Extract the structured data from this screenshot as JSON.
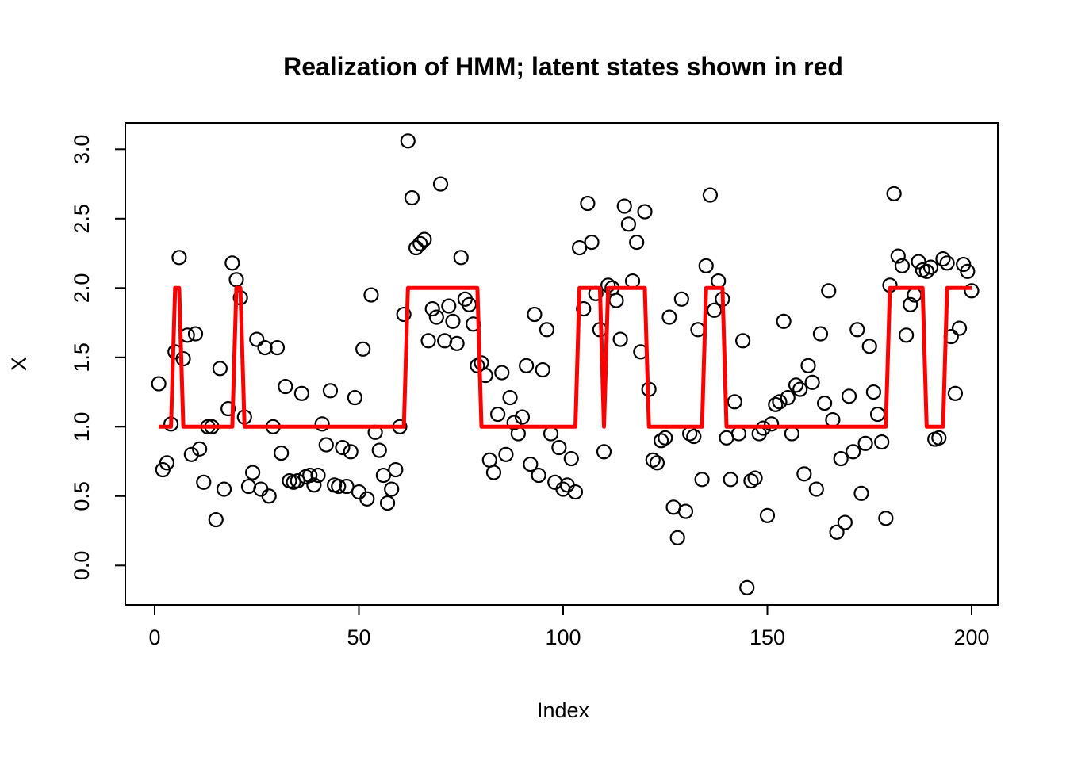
{
  "title": "Realization of HMM; latent states shown in red",
  "colors": {
    "latent_line": "#FF0000",
    "point_stroke": "#000000",
    "axis": "#000000",
    "background": "#FFFFFF"
  },
  "chart_data": {
    "type": "scatter",
    "title": "Realization of HMM; latent states shown in red",
    "xlabel": "Index",
    "ylabel": "X",
    "x_description": "Index runs 1..200; one observation per index",
    "x_ticks": [
      0,
      50,
      100,
      150,
      200
    ],
    "y_ticks": [
      "0.0",
      "0.5",
      "1.0",
      "1.5",
      "2.0",
      "2.5",
      "3.0"
    ],
    "y_tick_values": [
      0,
      0.5,
      1,
      1.5,
      2,
      2.5,
      3
    ],
    "xlim": [
      -7,
      207
    ],
    "ylim": [
      -0.33,
      3.19
    ],
    "grid": false,
    "legend": "none (red step line = latent state, open circles = observations)",
    "latent_default_state": 1,
    "latent_state2_runs": [
      [
        5,
        6
      ],
      [
        20,
        21
      ],
      [
        62,
        79
      ],
      [
        104,
        109
      ],
      [
        111,
        120
      ],
      [
        135,
        139
      ],
      [
        180,
        188
      ],
      [
        194,
        200
      ]
    ],
    "observations": [
      1.31,
      0.69,
      0.74,
      1.02,
      1.54,
      2.22,
      1.49,
      1.66,
      0.8,
      1.67,
      0.84,
      0.6,
      1.0,
      1.0,
      0.33,
      1.42,
      0.55,
      1.13,
      2.18,
      2.06,
      1.93,
      1.07,
      0.57,
      0.67,
      1.63,
      0.55,
      1.57,
      0.5,
      1.0,
      1.57,
      0.81,
      1.29,
      0.61,
      0.6,
      0.61,
      1.24,
      0.64,
      0.65,
      0.58,
      0.65,
      1.02,
      0.87,
      1.26,
      0.58,
      0.57,
      0.85,
      0.57,
      0.82,
      1.21,
      0.53,
      1.56,
      0.48,
      1.95,
      0.96,
      0.83,
      0.65,
      0.45,
      0.55,
      0.69,
      1.0,
      1.81,
      3.06,
      2.65,
      2.29,
      2.32,
      2.35,
      1.62,
      1.85,
      1.79,
      2.75,
      1.62,
      1.87,
      1.76,
      1.6,
      2.22,
      1.92,
      1.88,
      1.74,
      1.44,
      1.46,
      1.37,
      0.76,
      0.67,
      1.09,
      1.39,
      0.8,
      1.21,
      1.03,
      0.95,
      1.07,
      1.44,
      0.73,
      1.81,
      0.65,
      1.41,
      1.7,
      0.95,
      0.6,
      0.85,
      0.55,
      0.58,
      0.77,
      0.53,
      2.29,
      1.85,
      2.61,
      2.33,
      1.96,
      1.7,
      0.82,
      2.02,
      2.0,
      1.91,
      1.63,
      2.59,
      2.46,
      2.05,
      2.33,
      1.54,
      2.55,
      1.27,
      0.76,
      0.74,
      0.9,
      0.92,
      1.79,
      0.42,
      0.2,
      1.92,
      0.39,
      0.95,
      0.93,
      1.7,
      0.62,
      2.16,
      2.67,
      1.84,
      2.05,
      1.92,
      0.92,
      0.62,
      1.18,
      0.95,
      1.62,
      -0.16,
      0.61,
      0.63,
      0.95,
      0.99,
      0.36,
      1.02,
      1.16,
      1.18,
      1.76,
      1.21,
      0.95,
      1.3,
      1.27,
      0.66,
      1.44,
      1.32,
      0.55,
      1.67,
      1.17,
      1.98,
      1.05,
      0.24,
      0.77,
      0.31,
      1.22,
      0.82,
      1.7,
      0.52,
      0.88,
      1.58,
      1.25,
      1.09,
      0.89,
      0.34,
      2.02,
      2.68,
      2.23,
      2.16,
      1.66,
      1.88,
      1.95,
      2.19,
      2.13,
      2.12,
      2.15,
      0.91,
      0.92,
      2.21,
      2.18,
      1.65,
      1.24,
      1.71,
      2.17,
      2.12,
      1.98
    ]
  }
}
